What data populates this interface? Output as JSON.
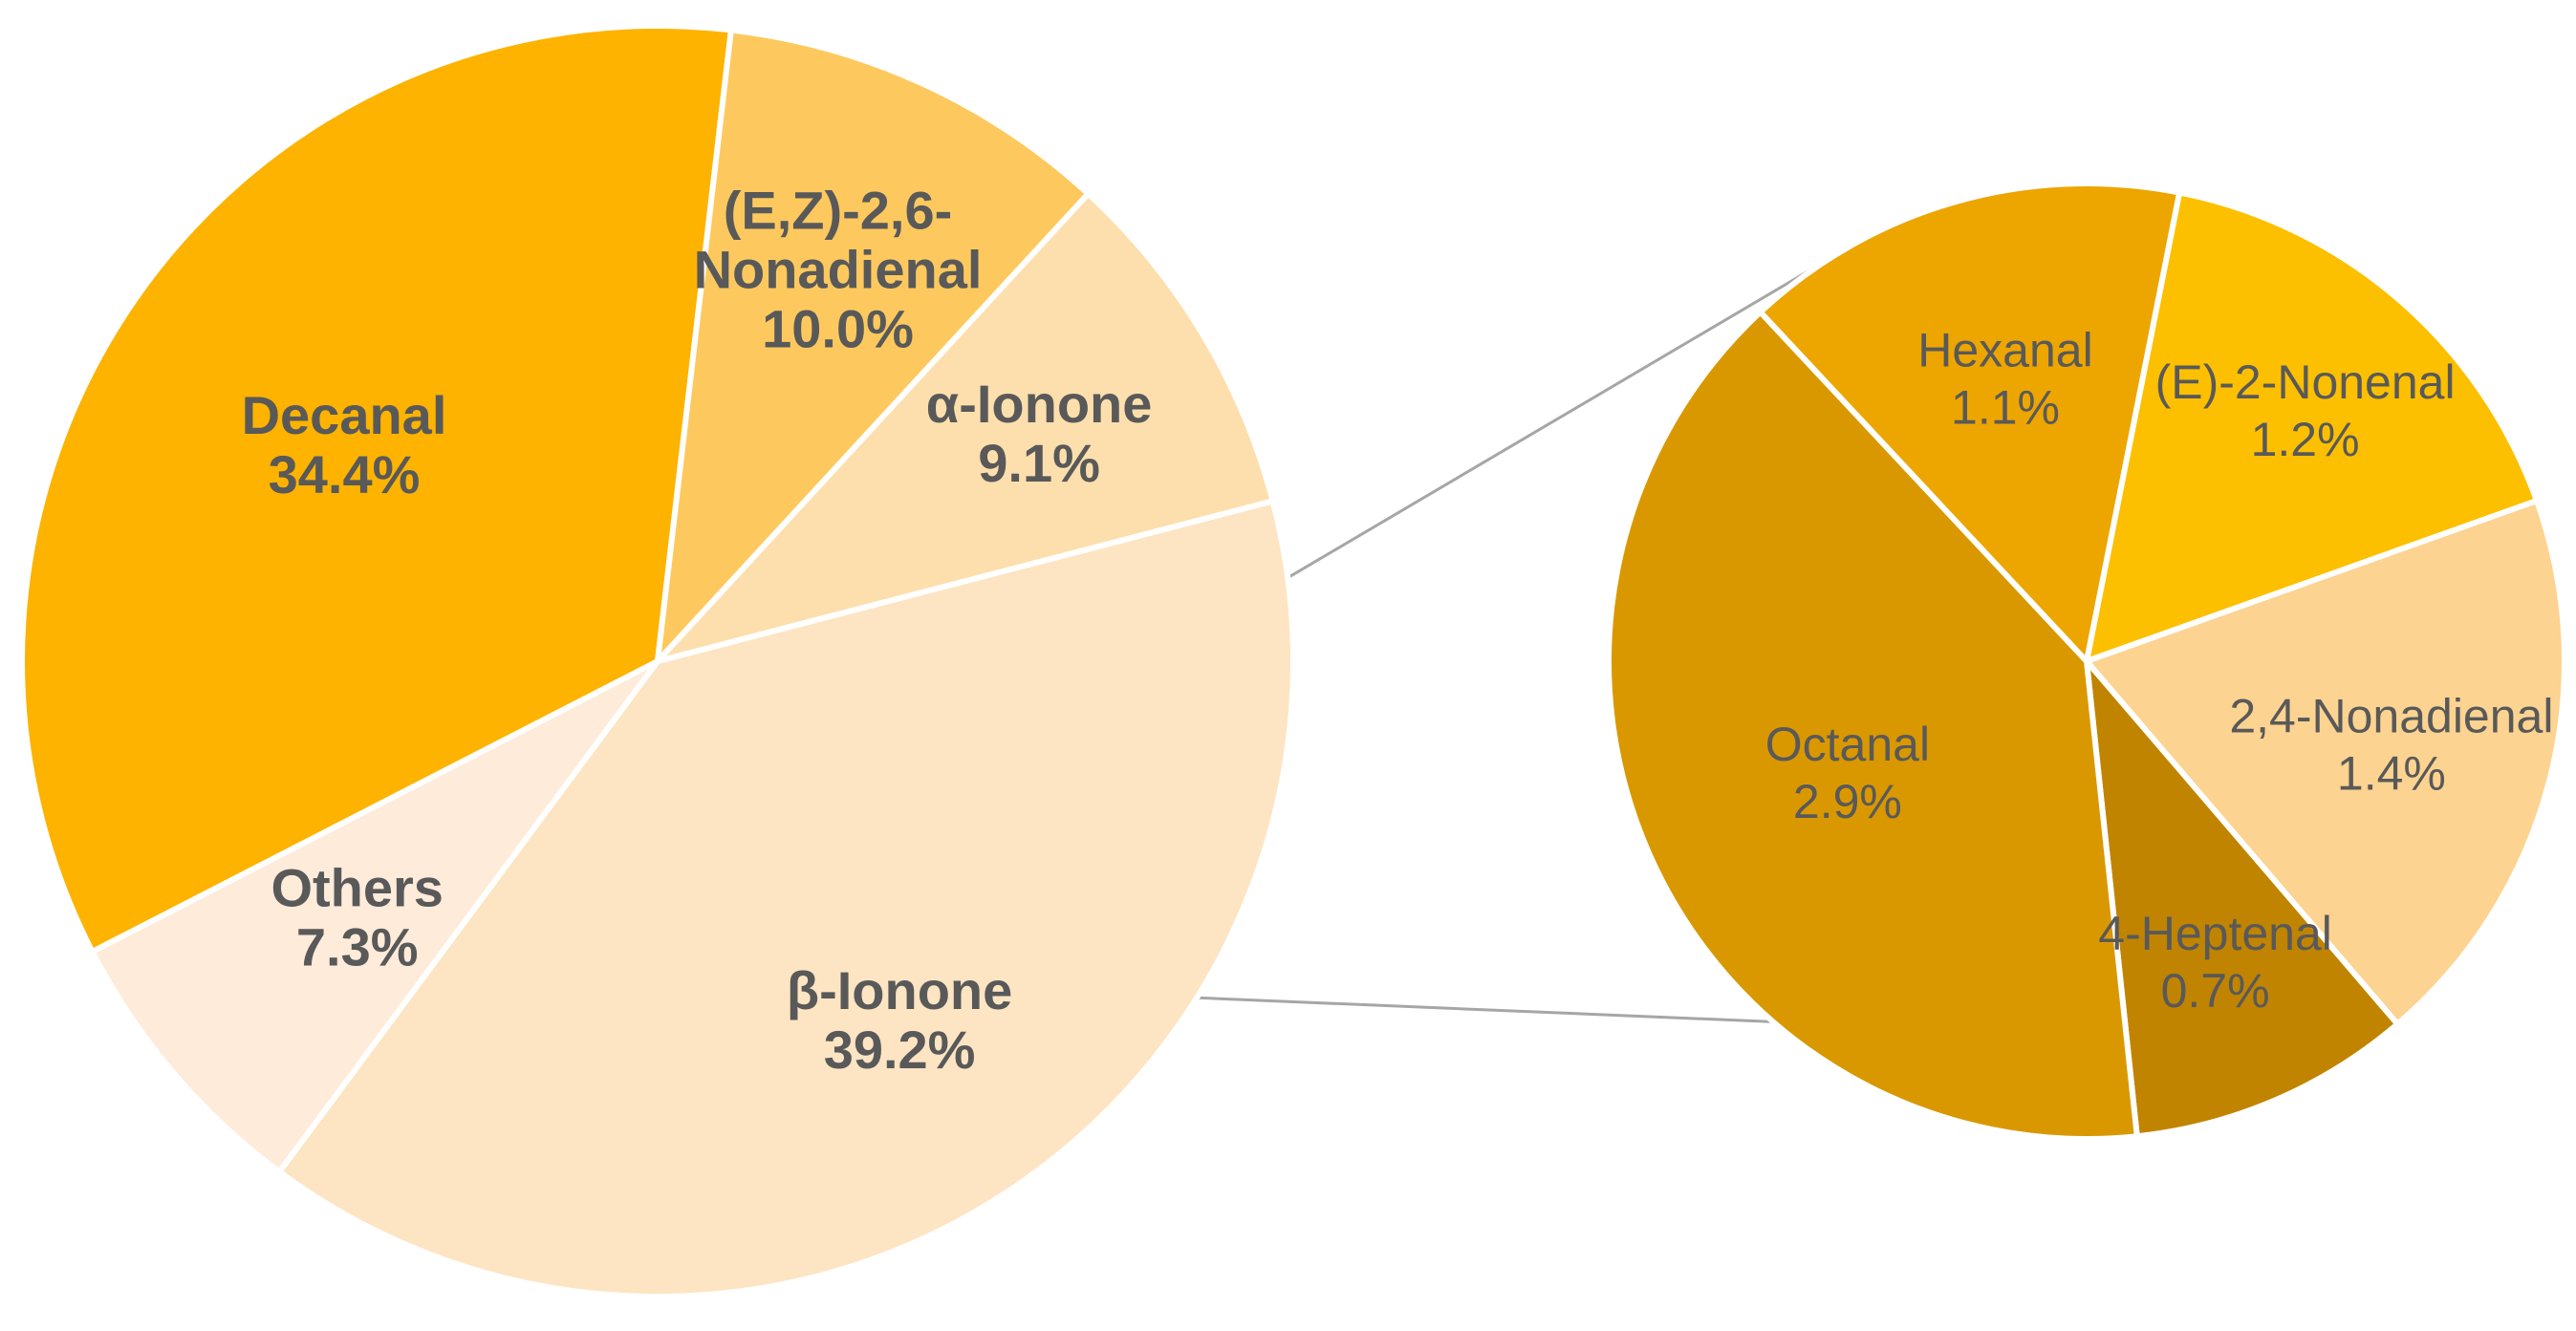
{
  "chart_data": [
    {
      "type": "pie",
      "title": "",
      "slices": [
        {
          "name": "β-Ionone",
          "label_lines": [
            "β-Ionone"
          ],
          "value": 39.2,
          "value_label": "39.2%",
          "color": "#FDE5C3"
        },
        {
          "name": "Others",
          "label_lines": [
            "Others"
          ],
          "value": 7.3,
          "value_label": "7.3%",
          "color": "#FEEBDA"
        },
        {
          "name": "Decanal",
          "label_lines": [
            "Decanal"
          ],
          "value": 34.4,
          "value_label": "34.4%",
          "color": "#FDB300"
        },
        {
          "name": "(E,Z)-2,6-Nonadienal",
          "label_lines": [
            "(E,Z)-2,6-",
            "Nonadienal"
          ],
          "value": 10.0,
          "value_label": "10.0%",
          "color": "#FDC95E"
        },
        {
          "name": "α-Ionone",
          "label_lines": [
            "α-Ionone"
          ],
          "value": 9.1,
          "value_label": "9.1%",
          "color": "#FDDFAD"
        }
      ]
    },
    {
      "type": "pie",
      "title": "",
      "breakout_of": "Others",
      "slices": [
        {
          "name": "(E)-2-Nonenal",
          "label_lines": [
            "(E)-2-Nonenal"
          ],
          "value": 1.2,
          "value_label": "1.2%",
          "color": "#FCC000"
        },
        {
          "name": "2,4-Nonadienal",
          "label_lines": [
            "2,4-Nonadienal"
          ],
          "value": 1.4,
          "value_label": "1.4%",
          "color": "#FCD390"
        },
        {
          "name": "4-Heptenal",
          "label_lines": [
            "4-Heptenal"
          ],
          "value": 0.7,
          "value_label": "0.7%",
          "color": "#C08400"
        },
        {
          "name": "Octanal",
          "label_lines": [
            "Octanal"
          ],
          "value": 2.9,
          "value_label": "2.9%",
          "color": "#D99800"
        },
        {
          "name": "Hexanal",
          "label_lines": [
            "Hexanal"
          ],
          "value": 1.1,
          "value_label": "1.1%",
          "color": "#EDA500"
        }
      ]
    }
  ]
}
